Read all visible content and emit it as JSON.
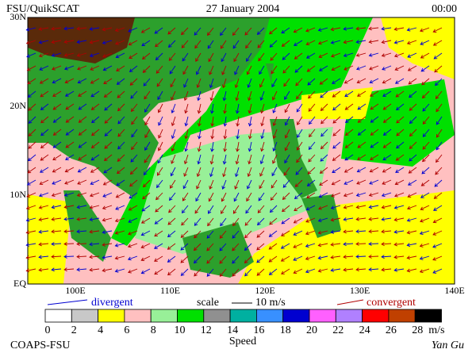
{
  "header": {
    "source": "FSU/QuikSCAT",
    "date": "27 January 2004",
    "time": "00:00"
  },
  "map": {
    "lat_labels": [
      "30N",
      "20N",
      "10N",
      "EQ"
    ],
    "lon_labels": [
      "100E",
      "110E",
      "120E",
      "130E",
      "140E"
    ]
  },
  "legend": {
    "divergent": "divergent",
    "scale": "scale",
    "scale_value": "10 m/s",
    "convergent": "convergent"
  },
  "colorbar": {
    "labels": [
      0,
      2,
      4,
      6,
      8,
      10,
      12,
      14,
      16,
      18,
      20,
      22,
      24,
      26,
      28
    ],
    "unit": "m/s",
    "colors": [
      "#ffffff",
      "#c8c8c8",
      "#ffff00",
      "#ffc0c0",
      "#98f098",
      "#00e000",
      "#909090",
      "#00b0a0",
      "#3890ff",
      "#0000d0",
      "#ff60ff",
      "#b080ff",
      "#ff0000",
      "#c04000",
      "#000000"
    ],
    "title": "Speed"
  },
  "footer": {
    "left": "COAPS-FSU",
    "right": "Yan Gu"
  }
}
